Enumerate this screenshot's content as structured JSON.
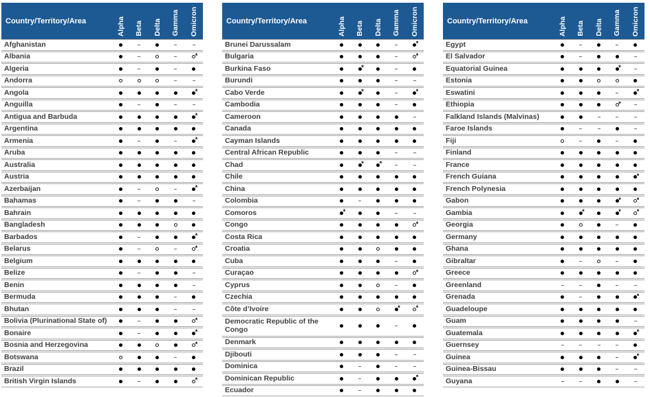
{
  "header_label": "Country/Territory/Area",
  "columns": [
    "Alpha",
    "Beta",
    "Delta",
    "Gamma",
    "Omicron"
  ],
  "colors": {
    "header_bg": "#1d5a94",
    "header_text": "#ffffff",
    "row_border": "#a6a6a6",
    "country_text": "#404040",
    "symbol": "#000000",
    "dash": "#6a6a6a"
  },
  "symbols_key": {
    "f": "filled-dot-icon",
    "o": "open-circle-icon",
    "-": "dash-icon",
    "f*": "filled-dot-asterisk-icon",
    "o*": "open-circle-asterisk-icon"
  },
  "tables": [
    {
      "rows": [
        {
          "name": "Afghanistan",
          "cells": [
            "f",
            "-",
            "f",
            "-",
            "-"
          ]
        },
        {
          "name": "Albania",
          "cells": [
            "f",
            "-",
            "o",
            "-",
            "o*"
          ]
        },
        {
          "name": "Algeria",
          "cells": [
            "f",
            "-",
            "f",
            "-",
            "f"
          ]
        },
        {
          "name": "Andorra",
          "cells": [
            "o",
            "o",
            "o",
            "-",
            "-"
          ]
        },
        {
          "name": "Angola",
          "cells": [
            "f",
            "f",
            "f",
            "f",
            "f*"
          ]
        },
        {
          "name": "Anguilla",
          "cells": [
            "f",
            "-",
            "f",
            "-",
            "-"
          ]
        },
        {
          "name": "Antigua and Barbuda",
          "cells": [
            "f",
            "f",
            "f",
            "f",
            "f*"
          ]
        },
        {
          "name": "Argentina",
          "cells": [
            "f",
            "f",
            "f",
            "f",
            "f"
          ]
        },
        {
          "name": "Armenia",
          "cells": [
            "f",
            "-",
            "f",
            "-",
            "f*"
          ]
        },
        {
          "name": "Aruba",
          "cells": [
            "f",
            "f",
            "f",
            "f",
            "f"
          ]
        },
        {
          "name": "Australia",
          "cells": [
            "f",
            "f",
            "f",
            "f",
            "f"
          ]
        },
        {
          "name": "Austria",
          "cells": [
            "f",
            "f",
            "f",
            "f",
            "f"
          ]
        },
        {
          "name": "Azerbaijan",
          "cells": [
            "f",
            "-",
            "o",
            "-",
            "f*"
          ]
        },
        {
          "name": "Bahamas",
          "cells": [
            "f",
            "-",
            "f",
            "f",
            "-"
          ]
        },
        {
          "name": "Bahrain",
          "cells": [
            "f",
            "f",
            "f",
            "f",
            "f"
          ]
        },
        {
          "name": "Bangladesh",
          "cells": [
            "f",
            "f",
            "f",
            "o",
            "f"
          ]
        },
        {
          "name": "Barbados",
          "cells": [
            "f",
            "-",
            "f",
            "f",
            "f*"
          ]
        },
        {
          "name": "Belarus",
          "cells": [
            "f",
            "-",
            "o",
            "-",
            "o*"
          ]
        },
        {
          "name": "Belgium",
          "cells": [
            "f",
            "f",
            "f",
            "f",
            "f"
          ]
        },
        {
          "name": "Belize",
          "cells": [
            "f",
            "-",
            "f",
            "f",
            "-"
          ]
        },
        {
          "name": "Benin",
          "cells": [
            "f",
            "f",
            "f",
            "f",
            "-"
          ]
        },
        {
          "name": "Bermuda",
          "cells": [
            "f",
            "f",
            "f",
            "-",
            "f"
          ]
        },
        {
          "name": "Bhutan",
          "cells": [
            "f",
            "f",
            "f",
            "-",
            "-"
          ]
        },
        {
          "name": "Bolivia (Plurinational State of)",
          "cells": [
            "f",
            "-",
            "f",
            "f",
            "o*"
          ]
        },
        {
          "name": "Bonaire",
          "cells": [
            "f",
            "-",
            "f",
            "f",
            "f*"
          ]
        },
        {
          "name": "Bosnia and Herzegovina",
          "cells": [
            "f",
            "f",
            "o",
            "f",
            "o*"
          ]
        },
        {
          "name": "Botswana",
          "cells": [
            "o",
            "f",
            "f",
            "-",
            "f"
          ]
        },
        {
          "name": "Brazil",
          "cells": [
            "f",
            "f",
            "f",
            "f",
            "f"
          ]
        },
        {
          "name": "British Virgin Islands",
          "cells": [
            "f",
            "-",
            "f",
            "f",
            "o*"
          ]
        }
      ]
    },
    {
      "rows": [
        {
          "name": "Brunei Darussalam",
          "cells": [
            "f",
            "f",
            "f",
            "-",
            "f*"
          ]
        },
        {
          "name": "Bulgaria",
          "cells": [
            "f",
            "f",
            "f",
            "-",
            "o*"
          ]
        },
        {
          "name": "Burkina Faso",
          "cells": [
            "f",
            "f*",
            "f",
            "-",
            "f"
          ]
        },
        {
          "name": "Burundi",
          "cells": [
            "f",
            "f",
            "f",
            "-",
            "-"
          ]
        },
        {
          "name": "Cabo Verde",
          "cells": [
            "f",
            "f*",
            "f",
            "-",
            "f*"
          ]
        },
        {
          "name": "Cambodia",
          "cells": [
            "f",
            "f",
            "f",
            "-",
            "f"
          ]
        },
        {
          "name": "Cameroon",
          "cells": [
            "f",
            "f",
            "f",
            "f",
            "-"
          ]
        },
        {
          "name": "Canada",
          "cells": [
            "f",
            "f",
            "f",
            "f",
            "f"
          ]
        },
        {
          "name": "Cayman Islands",
          "cells": [
            "f",
            "f",
            "f",
            "f",
            "f"
          ]
        },
        {
          "name": "Central African Republic",
          "cells": [
            "f",
            "f",
            "f",
            "-",
            "-"
          ]
        },
        {
          "name": "Chad",
          "cells": [
            "f",
            "f*",
            "f*",
            "-",
            "-"
          ]
        },
        {
          "name": "Chile",
          "cells": [
            "f",
            "f",
            "f",
            "f",
            "f"
          ]
        },
        {
          "name": "China",
          "cells": [
            "f",
            "f",
            "f",
            "f",
            "f"
          ]
        },
        {
          "name": "Colombia",
          "cells": [
            "f",
            "-",
            "f",
            "f",
            "f"
          ]
        },
        {
          "name": "Comoros",
          "cells": [
            "f*",
            "f",
            "f",
            "-",
            "-"
          ]
        },
        {
          "name": "Congo",
          "cells": [
            "f",
            "f",
            "f",
            "f",
            "o*"
          ]
        },
        {
          "name": "Costa Rica",
          "cells": [
            "f",
            "f",
            "f",
            "f",
            "f"
          ]
        },
        {
          "name": "Croatia",
          "cells": [
            "f",
            "f",
            "o",
            "f",
            "f"
          ]
        },
        {
          "name": "Cuba",
          "cells": [
            "f",
            "f",
            "f",
            "-",
            "f"
          ]
        },
        {
          "name": "Curaçao",
          "cells": [
            "f",
            "f",
            "f",
            "f",
            "o*"
          ]
        },
        {
          "name": "Cyprus",
          "cells": [
            "f",
            "f",
            "o",
            "-",
            "f"
          ]
        },
        {
          "name": "Czechia",
          "cells": [
            "f",
            "f",
            "f",
            "f",
            "f"
          ]
        },
        {
          "name": "Côte d’Ivoire",
          "cells": [
            "f",
            "f",
            "o",
            "f*",
            "o*"
          ]
        },
        {
          "name": "Democratic Republic of the Congo",
          "cells": [
            "f",
            "f",
            "f",
            "-",
            "f"
          ],
          "wrap": true
        },
        {
          "name": "Denmark",
          "cells": [
            "f",
            "f",
            "f",
            "f",
            "f"
          ]
        },
        {
          "name": "Djibouti",
          "cells": [
            "f",
            "f",
            "f",
            "-",
            "-"
          ]
        },
        {
          "name": "Dominica",
          "cells": [
            "f",
            "-",
            "f",
            "-",
            "-"
          ]
        },
        {
          "name": "Dominican Republic",
          "cells": [
            "f",
            "-",
            "f",
            "f",
            "f*"
          ]
        },
        {
          "name": "Ecuador",
          "cells": [
            "f",
            "-",
            "f",
            "f",
            "f"
          ]
        }
      ]
    },
    {
      "rows": [
        {
          "name": "Egypt",
          "cells": [
            "f",
            "-",
            "f",
            "-",
            "f"
          ]
        },
        {
          "name": "El Salvador",
          "cells": [
            "f",
            "-",
            "f",
            "f",
            "-"
          ]
        },
        {
          "name": "Equatorial Guinea",
          "cells": [
            "f",
            "f",
            "f",
            "f*",
            "-"
          ]
        },
        {
          "name": "Estonia",
          "cells": [
            "f",
            "f",
            "o",
            "o",
            "f"
          ]
        },
        {
          "name": "Eswatini",
          "cells": [
            "f",
            "f",
            "f",
            "-",
            "f*"
          ]
        },
        {
          "name": "Ethiopia",
          "cells": [
            "f",
            "f",
            "f",
            "o*",
            "-"
          ]
        },
        {
          "name": "Falkland Islands (Malvinas)",
          "cells": [
            "f",
            "f",
            "-",
            "-",
            "-"
          ]
        },
        {
          "name": "Faroe Islands",
          "cells": [
            "f",
            "-",
            "-",
            "f",
            "-"
          ]
        },
        {
          "name": "Fiji",
          "cells": [
            "o",
            "-",
            "f",
            "-",
            "f"
          ]
        },
        {
          "name": "Finland",
          "cells": [
            "f",
            "f",
            "f",
            "f",
            "f"
          ]
        },
        {
          "name": "France",
          "cells": [
            "f",
            "f",
            "f",
            "f",
            "f"
          ]
        },
        {
          "name": "French Guiana",
          "cells": [
            "f",
            "f",
            "f",
            "f",
            "f*"
          ]
        },
        {
          "name": "French Polynesia",
          "cells": [
            "f",
            "f",
            "f",
            "f",
            "f"
          ]
        },
        {
          "name": "Gabon",
          "cells": [
            "f",
            "f",
            "f",
            "f*",
            "o*"
          ]
        },
        {
          "name": "Gambia",
          "cells": [
            "f",
            "f*",
            "f",
            "f*",
            "o*"
          ]
        },
        {
          "name": "Georgia",
          "cells": [
            "f",
            "o",
            "f",
            "-",
            "f"
          ]
        },
        {
          "name": "Germany",
          "cells": [
            "f",
            "f",
            "f",
            "f",
            "f"
          ]
        },
        {
          "name": "Ghana",
          "cells": [
            "f",
            "f",
            "f",
            "f",
            "f"
          ]
        },
        {
          "name": "Gibraltar",
          "cells": [
            "f",
            "-",
            "o",
            "-",
            "f"
          ]
        },
        {
          "name": "Greece",
          "cells": [
            "f",
            "f",
            "f",
            "f",
            "f"
          ]
        },
        {
          "name": "Greenland",
          "cells": [
            "-",
            "-",
            "f",
            "-",
            "-"
          ]
        },
        {
          "name": "Grenada",
          "cells": [
            "f",
            "-",
            "f",
            "f",
            "f*"
          ]
        },
        {
          "name": "Guadeloupe",
          "cells": [
            "f",
            "f",
            "f",
            "f",
            "f"
          ]
        },
        {
          "name": "Guam",
          "cells": [
            "f",
            "f",
            "f",
            "f",
            "-"
          ]
        },
        {
          "name": "Guatemala",
          "cells": [
            "f",
            "f",
            "f",
            "f",
            "f*"
          ]
        },
        {
          "name": "Guernsey",
          "cells": [
            "-",
            "-",
            "-",
            "-",
            "f"
          ]
        },
        {
          "name": "Guinea",
          "cells": [
            "f",
            "f",
            "f",
            "-",
            "f*"
          ]
        },
        {
          "name": "Guinea-Bissau",
          "cells": [
            "f",
            "f",
            "f",
            "-",
            "-"
          ]
        },
        {
          "name": "Guyana",
          "cells": [
            "-",
            "-",
            "f",
            "f",
            "-"
          ]
        }
      ]
    }
  ]
}
